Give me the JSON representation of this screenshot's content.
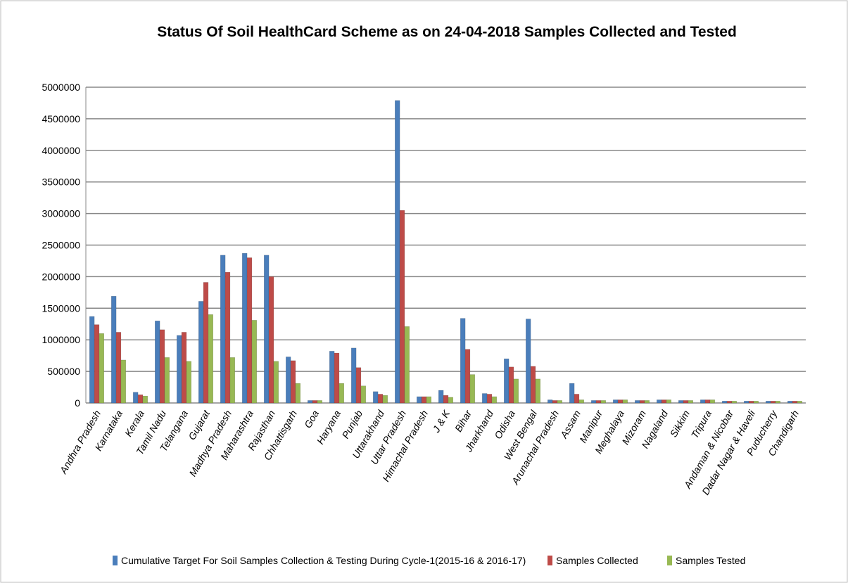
{
  "chart_data": {
    "type": "bar",
    "title": "Status Of Soil HealthCard  Scheme as on 24-04-2018 Samples Collected and Tested",
    "categories": [
      "Andhra Pradesh",
      "Karnataka",
      "Kerala",
      "Tamil Nadu",
      "Telangana",
      "Gujarat",
      "Madhya Pradesh",
      "Maharashtra",
      "Rajasthan",
      "Chhattisgarh",
      "Goa",
      "Haryana",
      "Punjab",
      "Uttarakhand",
      "Uttar Pradesh",
      "Himachal Pradesh",
      "J & K",
      "Bihar",
      "Jharkhand",
      "Odisha",
      "West Bengal",
      "Arunachal Pradesh",
      "Assam",
      "Manipur",
      "Meghalaya",
      "Mizoram",
      "Nagaland",
      "Sikkim",
      "Tripura",
      "Andaman & Nicobar",
      "Dadar Nagar & Haveli",
      "Puducherry",
      "Chandigarh"
    ],
    "series": [
      {
        "name": "Cumulative Target For Soil Samples  Collection & Testing During Cycle-1(2015-16 & 2016-17)",
        "color": "#4a7ebb",
        "values": [
          1370000,
          1690000,
          170000,
          1300000,
          1070000,
          1610000,
          2340000,
          2370000,
          2340000,
          730000,
          40000,
          820000,
          870000,
          180000,
          4790000,
          100000,
          200000,
          1340000,
          150000,
          700000,
          1330000,
          50000,
          310000,
          40000,
          50000,
          40000,
          50000,
          40000,
          50000,
          30000,
          30000,
          30000,
          30000
        ]
      },
      {
        "name": "Samples Collected",
        "color": "#be4b48",
        "values": [
          1240000,
          1120000,
          130000,
          1160000,
          1120000,
          1910000,
          2070000,
          2300000,
          2000000,
          670000,
          40000,
          790000,
          560000,
          140000,
          3050000,
          100000,
          120000,
          850000,
          140000,
          570000,
          580000,
          40000,
          140000,
          40000,
          50000,
          40000,
          50000,
          40000,
          50000,
          30000,
          30000,
          30000,
          30000
        ]
      },
      {
        "name": "Samples Tested",
        "color": "#98b954",
        "values": [
          1100000,
          680000,
          110000,
          720000,
          660000,
          1400000,
          720000,
          1310000,
          660000,
          310000,
          40000,
          310000,
          270000,
          120000,
          1210000,
          100000,
          90000,
          450000,
          100000,
          380000,
          380000,
          40000,
          50000,
          40000,
          50000,
          40000,
          50000,
          40000,
          50000,
          30000,
          30000,
          30000,
          30000
        ]
      }
    ],
    "ylim": [
      0,
      5000000
    ],
    "yticks": [
      0,
      500000,
      1000000,
      1500000,
      2000000,
      2500000,
      3000000,
      3500000,
      4000000,
      4500000,
      5000000
    ],
    "grid": true,
    "legend": "bottom"
  }
}
